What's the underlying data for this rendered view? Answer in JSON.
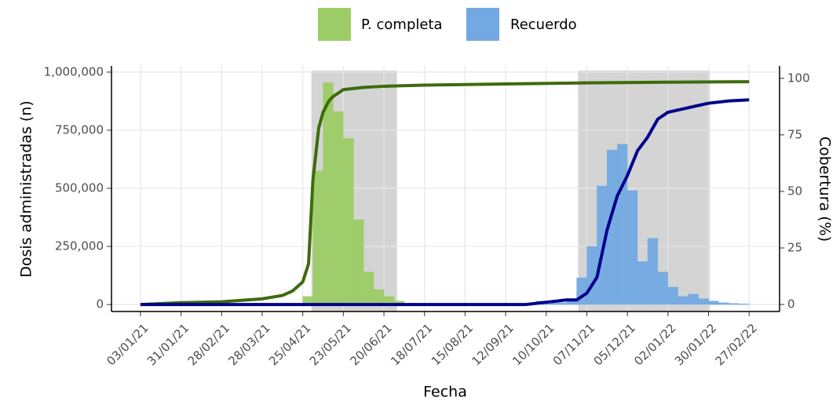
{
  "chart_data": {
    "type": "histogram_lines",
    "ylabel": "Dosis administradas (n)",
    "y2label": "Cobertura (%)",
    "xlabel": "Fecha",
    "xlim": [
      "14/12/20",
      "20/03/22"
    ],
    "xticks": [
      "03/01/21",
      "31/01/21",
      "28/02/21",
      "28/03/21",
      "25/04/21",
      "23/05/21",
      "20/06/21",
      "18/07/21",
      "15/08/21",
      "12/09/21",
      "10/10/21",
      "07/11/21",
      "05/12/21",
      "02/01/22",
      "30/01/22",
      "27/02/22"
    ],
    "ylim": [
      -30000,
      1026667
    ],
    "yticks": [
      0,
      {
        "value": 250000,
        "label": "250,000"
      },
      {
        "value": 500000,
        "label": "500,000"
      },
      {
        "value": 750000,
        "label": "750,000"
      },
      {
        "value": 1000000,
        "label": "1,000,000"
      }
    ],
    "y2lim": [
      -3.1,
      105.5
    ],
    "y2ticks": [
      0,
      25,
      50,
      75,
      100
    ],
    "grid": true,
    "legend": "top",
    "shaded_regions": [
      {
        "start": "01/05/21",
        "end": "29/06/21"
      },
      {
        "start": "01/11/21",
        "end": "31/01/22"
      }
    ],
    "series": [
      {
        "name": "P. completa",
        "color": "#9ccc65",
        "bins": [
          "25/04/21",
          "02/05/21",
          "09/05/21",
          "16/05/21",
          "23/05/21",
          "30/05/21",
          "06/06/21",
          "13/06/21",
          "20/06/21",
          "27/06/21",
          "04/07/21",
          "11/07/21"
        ],
        "values": [
          35000,
          575000,
          955000,
          830000,
          715000,
          365000,
          140000,
          65000,
          35000,
          15000,
          5000
        ]
      },
      {
        "name": "Recuerdo",
        "color": "#72a9e2",
        "bins": [
          "26/09/21",
          "03/10/21",
          "10/10/21",
          "17/10/21",
          "24/10/21",
          "31/10/21",
          "07/11/21",
          "14/11/21",
          "21/11/21",
          "28/11/21",
          "05/12/21",
          "12/12/21",
          "19/12/21",
          "26/12/21",
          "02/01/22",
          "09/01/22",
          "16/01/22",
          "23/01/22",
          "30/01/22",
          "06/02/22",
          "13/02/22",
          "20/02/22",
          "27/02/22"
        ],
        "values": [
          5000,
          15000,
          10000,
          8000,
          15000,
          115000,
          250000,
          510000,
          665000,
          690000,
          490000,
          185000,
          285000,
          140000,
          75000,
          35000,
          45000,
          25000,
          15000,
          8000,
          5000,
          3000
        ]
      }
    ],
    "lines": [
      {
        "color": "#3d6b0c",
        "axis": "y2",
        "x": [
          "03/01/21",
          "31/01/21",
          "28/02/21",
          "28/03/21",
          "11/04/21",
          "18/04/21",
          "25/04/21",
          "29/04/21",
          "02/05/21",
          "06/05/21",
          "09/05/21",
          "13/05/21",
          "16/05/21",
          "23/05/21",
          "06/06/21",
          "20/06/21",
          "18/07/21",
          "12/09/21",
          "07/11/21",
          "02/01/22",
          "27/02/22"
        ],
        "values": [
          0,
          0.8,
          1.2,
          2.5,
          4,
          6,
          10,
          18,
          55,
          78,
          85,
          90,
          92,
          95,
          96,
          96.5,
          97,
          97.5,
          98,
          98.3,
          98.5
        ]
      },
      {
        "color": "#00008b",
        "axis": "y2",
        "x": [
          "03/01/21",
          "26/09/21",
          "10/10/21",
          "24/10/21",
          "31/10/21",
          "07/11/21",
          "14/11/21",
          "21/11/21",
          "28/11/21",
          "05/12/21",
          "12/12/21",
          "19/12/21",
          "26/12/21",
          "02/01/22",
          "16/01/22",
          "30/01/22",
          "13/02/22",
          "27/02/22"
        ],
        "values": [
          0,
          0,
          1,
          2,
          2,
          5,
          12,
          33,
          48,
          57,
          68,
          74,
          82,
          85,
          87,
          89,
          90,
          90.5
        ]
      }
    ]
  }
}
